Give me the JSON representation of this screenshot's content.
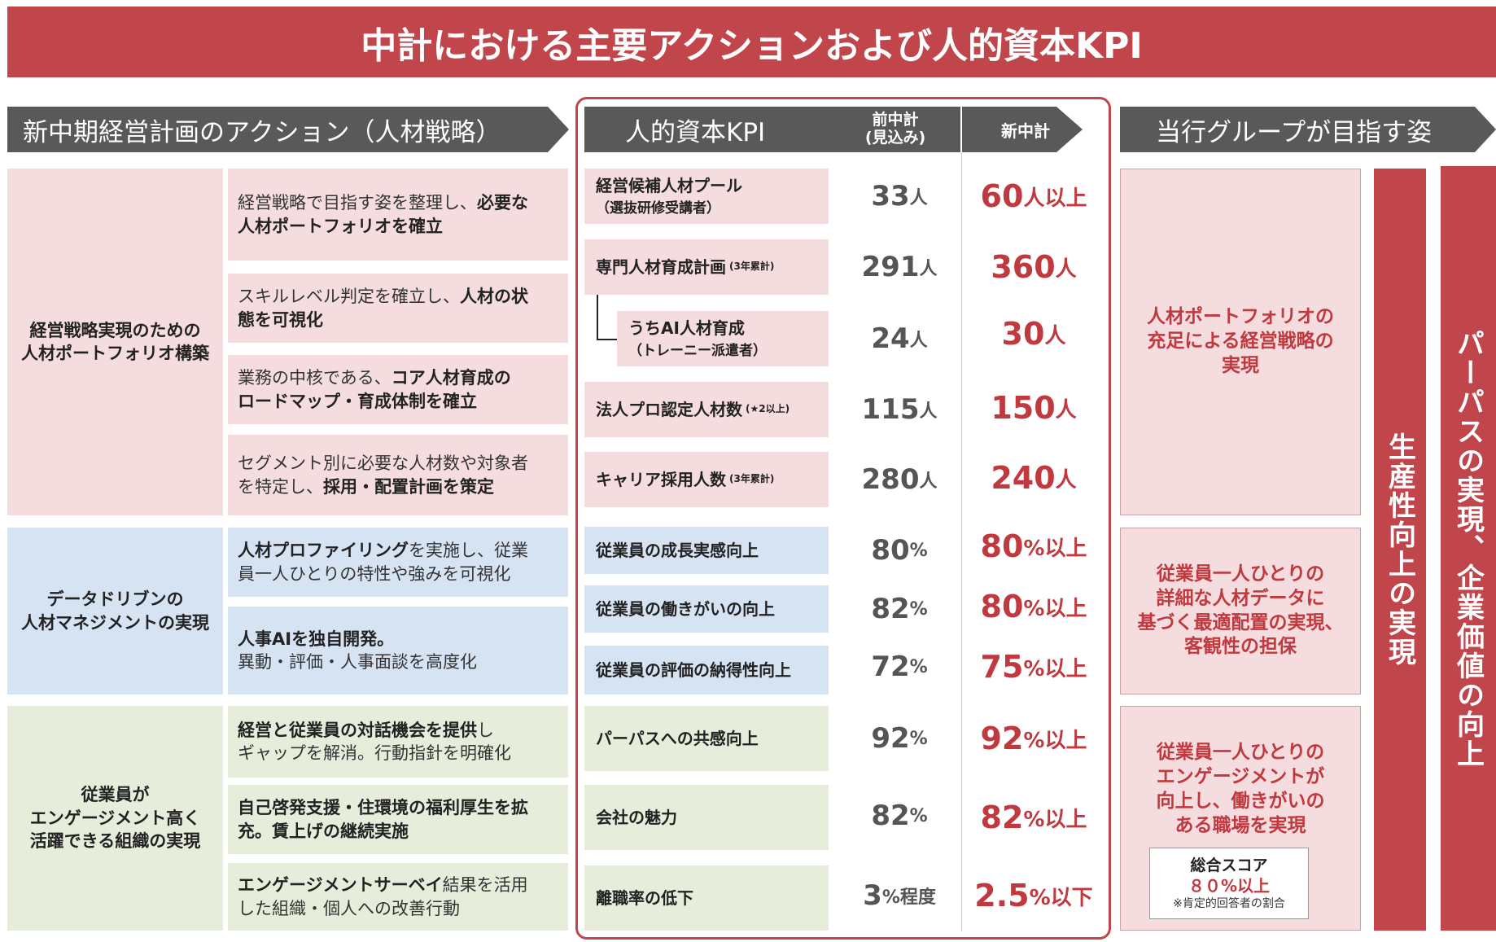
{
  "title": "中計における主要アクションおよび人的資本KPI",
  "headers": {
    "left": "新中期経営計画のアクション（人材戦略）",
    "kpi": "人的資本KPI",
    "prev_line1": "前中計",
    "prev_line2": "(見込み)",
    "next": "新中計",
    "right": "当行グループが目指す姿"
  },
  "categories": [
    {
      "line1": "経営戦略実現のための",
      "line2": "人材ポートフォリオ構築",
      "line3": ""
    },
    {
      "line1": "データドリブンの",
      "line2": "人材マネジメントの実現",
      "line3": ""
    },
    {
      "line1": "従業員が",
      "line2": "エンゲージメント高く",
      "line3": "活躍できる組織の実現"
    }
  ],
  "actions": [
    {
      "plain1": "経営戦略で目指す姿を整理し、",
      "bold1": "必要な",
      "bold2": "人材ポートフォリオを確立",
      "plain2": ""
    },
    {
      "plain1": "スキルレベル判定を確立し、",
      "bold1": "人材の状",
      "bold2": "態を可視化",
      "plain2": ""
    },
    {
      "plain1": "業務の中核である、",
      "bold1": "コア人材育成の",
      "bold2": "ロードマップ・育成体制を確立",
      "plain2": ""
    },
    {
      "plain1": "セグメント別に必要な人材数や対象者",
      "bold1": "",
      "bold2": "採用・配置計画を策定",
      "plain2": "を特定し、"
    },
    {
      "bold1": "人材プロファイリング",
      "plain1": "を実施し、従業",
      "plain2": "員一人ひとりの特性や強みを可視化",
      "bold2": ""
    },
    {
      "bold1": "人事AIを独自開発。",
      "plain1": "",
      "plain2": "異動・評価・人事面談を高度化",
      "bold2": ""
    },
    {
      "bold1": "経営と従業員の対話機会を提供",
      "plain1": "し",
      "plain2": "ギャップを解消。行動指針を明確化",
      "bold2": ""
    },
    {
      "bold1": "自己啓発支援・住環境の福利厚生を拡",
      "plain1": "",
      "plain2": "",
      "bold2": "充。賃上げの継続実施"
    },
    {
      "bold1": "エンゲージメントサーベイ",
      "plain1": "結果を活用",
      "plain2": "した組織・個人への改善行動",
      "bold2": ""
    }
  ],
  "kpis": [
    {
      "name": "経営候補人材プール",
      "sub": "（選抜研修受講者）",
      "note": "",
      "prev": "33",
      "prev_unit": "人",
      "next": "60",
      "next_unit": "人以上"
    },
    {
      "name": "専門人材育成計画",
      "sub": "",
      "note": "(3年累計)",
      "prev": "291",
      "prev_unit": "人",
      "next": "360",
      "next_unit": "人"
    },
    {
      "name": "うちAI人材育成",
      "sub": "（トレーニー派遣者）",
      "note": "",
      "prev": "24",
      "prev_unit": "人",
      "next": "30",
      "next_unit": "人"
    },
    {
      "name": "法人プロ認定人材数",
      "sub": "",
      "note": "(★2以上)",
      "prev": "115",
      "prev_unit": "人",
      "next": "150",
      "next_unit": "人"
    },
    {
      "name": "キャリア採用人数",
      "sub": "",
      "note": "(3年累計)",
      "prev": "280",
      "prev_unit": "人",
      "next": "240",
      "next_unit": "人"
    },
    {
      "name": "従業員の成長実感向上",
      "sub": "",
      "note": "",
      "prev": "80",
      "prev_unit": "%",
      "next": "80",
      "next_unit": "%以上"
    },
    {
      "name": "従業員の働きがいの向上",
      "sub": "",
      "note": "",
      "prev": "82",
      "prev_unit": "%",
      "next": "80",
      "next_unit": "%以上"
    },
    {
      "name": "従業員の評価の納得性向上",
      "sub": "",
      "note": "",
      "prev": "72",
      "prev_unit": "%",
      "next": "75",
      "next_unit": "%以上"
    },
    {
      "name": "パーパスへの共感向上",
      "sub": "",
      "note": "",
      "prev": "92",
      "prev_unit": "%",
      "next": "92",
      "next_unit": "%以上"
    },
    {
      "name": "会社の魅力",
      "sub": "",
      "note": "",
      "prev": "82",
      "prev_unit": "%",
      "next": "82",
      "next_unit": "%以上"
    },
    {
      "name": "離職率の低下",
      "sub": "",
      "note": "",
      "prev": "3",
      "prev_unit": "%程度",
      "next": "2.5",
      "next_unit": "%以下"
    }
  ],
  "goals": [
    {
      "lines": [
        "人材ポートフォリオの",
        "充足による経営戦略の",
        "実現"
      ]
    },
    {
      "lines": [
        "従業員一人ひとりの",
        "詳細な人材データに",
        "基づく最適配置の実現、",
        "客観性の担保"
      ]
    },
    {
      "lines": [
        "従業員一人ひとりの",
        "エンゲージメントが",
        "向上し、働きがいの",
        "ある職場を実現"
      ]
    }
  ],
  "score": {
    "label": "総合スコア",
    "value": "８０%以上",
    "note": "※肯定的回答者の割合"
  },
  "vertical1": "生産性向上の実現",
  "vertical2": "パーパスの実現、企業価値の向上",
  "colors": {
    "accent_red": "#c1464c",
    "header_gray": "#595959",
    "pink": "#f5dcde",
    "blue": "#d6e3f3",
    "green": "#e6eedb"
  }
}
